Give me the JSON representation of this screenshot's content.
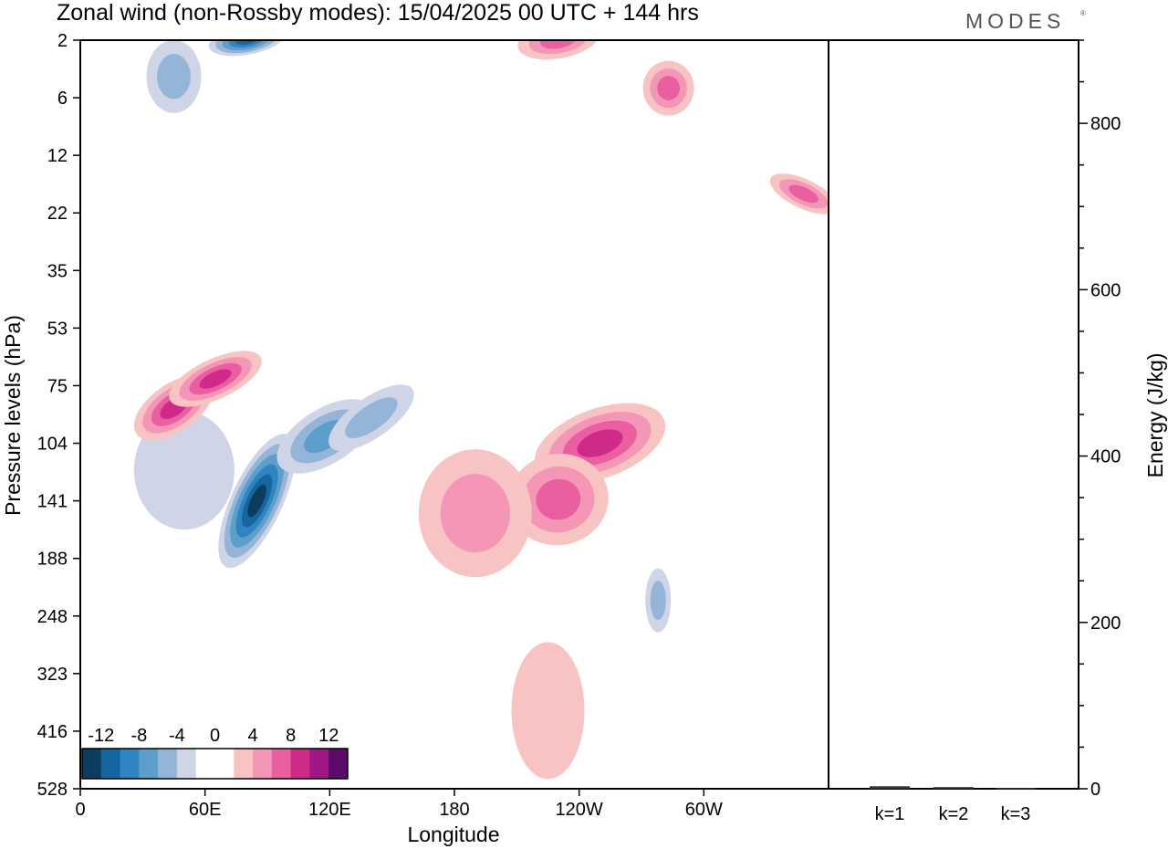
{
  "header": {
    "title": "Zonal wind (non-Rossby modes):  15/04/2025  00 UTC  + 144 hrs",
    "brand": "MODES",
    "brand_mark": "®"
  },
  "colors": {
    "negative": [
      "#0c3d5e",
      "#1565a0",
      "#2e85c0",
      "#5c9fcd",
      "#95b5d8",
      "#cfd5e6"
    ],
    "neutral": "#ffffff",
    "positive": [
      "#f7c3c3",
      "#f497b6",
      "#ea5fa0",
      "#cf2a8a",
      "#a01885",
      "#5d0a6d"
    ]
  },
  "chart_data": [
    {
      "type": "heatmap",
      "title": "Zonal wind (non-Rossby modes):  15/04/2025  00 UTC  + 144 hrs",
      "xlabel": "Longitude",
      "ylabel": "Pressure levels (hPa)",
      "x_ticks": [
        "0",
        "60E",
        "120E",
        "180",
        "120W",
        "60W"
      ],
      "x_tick_values": [
        0,
        60,
        120,
        180,
        240,
        300
      ],
      "x_range": [
        0,
        360
      ],
      "y_ticks": [
        "2",
        "6",
        "12",
        "22",
        "35",
        "53",
        "75",
        "104",
        "141",
        "188",
        "248",
        "323",
        "416",
        "528"
      ],
      "colorbar": {
        "labels": [
          "-12",
          "-8",
          "-4",
          "0",
          "4",
          "8",
          "12"
        ],
        "label_values": [
          -12,
          -8,
          -4,
          0,
          4,
          8,
          12
        ]
      },
      "features": [
        {
          "sign": "negative",
          "lon": 85,
          "lev": 141,
          "magnitude": 12
        },
        {
          "sign": "negative",
          "lon": 118,
          "lev": 100,
          "magnitude": 6
        },
        {
          "sign": "negative",
          "lon": 140,
          "lev": 90,
          "magnitude": 4
        },
        {
          "sign": "negative",
          "lon": 50,
          "lev": 120,
          "magnitude": 2
        },
        {
          "sign": "negative",
          "lon": 80,
          "lev": 2,
          "magnitude": 10
        },
        {
          "sign": "negative",
          "lon": 45,
          "lev": 4,
          "magnitude": 4
        },
        {
          "sign": "negative",
          "lon": 278,
          "lev": 230,
          "magnitude": 4
        },
        {
          "sign": "positive",
          "lon": 45,
          "lev": 85,
          "magnitude": 8
        },
        {
          "sign": "positive",
          "lon": 65,
          "lev": 72,
          "magnitude": 8
        },
        {
          "sign": "positive",
          "lon": 250,
          "lev": 104,
          "magnitude": 8
        },
        {
          "sign": "positive",
          "lon": 230,
          "lev": 140,
          "magnitude": 6
        },
        {
          "sign": "positive",
          "lon": 190,
          "lev": 150,
          "magnitude": 4
        },
        {
          "sign": "positive",
          "lon": 230,
          "lev": 2,
          "magnitude": 6
        },
        {
          "sign": "positive",
          "lon": 283,
          "lev": 5,
          "magnitude": 6
        },
        {
          "sign": "positive",
          "lon": 348,
          "lev": 18,
          "magnitude": 6
        },
        {
          "sign": "positive",
          "lon": 225,
          "lev": 380,
          "magnitude": 2
        }
      ]
    },
    {
      "type": "bar",
      "categories": [
        "k=1",
        "k=2",
        "k=3"
      ],
      "values": [
        3,
        2,
        1
      ],
      "ylabel": "Energy (J/kg)",
      "ylim": [
        0,
        900
      ],
      "y_ticks": [
        0,
        200,
        400,
        600,
        800
      ]
    }
  ]
}
